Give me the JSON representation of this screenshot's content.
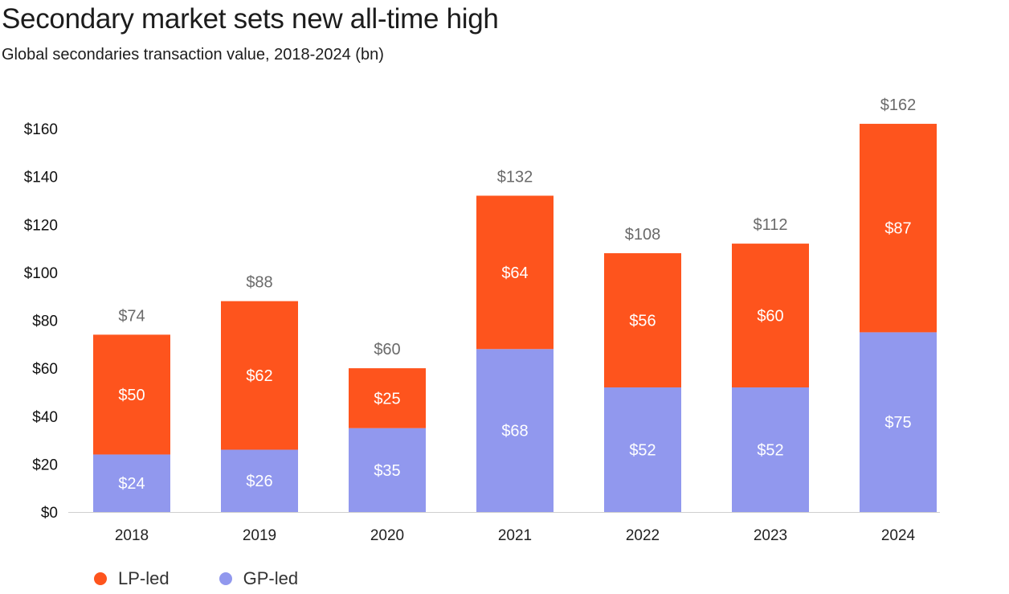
{
  "title": "Secondary market sets new all-time high",
  "subtitle": "Global secondaries transaction value, 2018-2024 (bn)",
  "colors": {
    "lp": "#FE541D",
    "gp": "#9198EE",
    "axis": "#111111",
    "total_label": "#6a6a6a",
    "bar_label": "#ffffff"
  },
  "chart_data": {
    "type": "bar",
    "stacked": true,
    "categories": [
      "2018",
      "2019",
      "2020",
      "2021",
      "2022",
      "2023",
      "2024"
    ],
    "series": [
      {
        "name": "GP-led",
        "values": [
          24,
          26,
          35,
          68,
          52,
          52,
          75
        ],
        "labels": [
          "$24",
          "$26",
          "$35",
          "$68",
          "$52",
          "$52",
          "$75"
        ]
      },
      {
        "name": "LP-led",
        "values": [
          50,
          62,
          25,
          64,
          56,
          60,
          87
        ],
        "labels": [
          "$50",
          "$62",
          "$25",
          "$64",
          "$56",
          "$60",
          "$87"
        ]
      }
    ],
    "totals": [
      "$74",
      "$88",
      "$60",
      "$132",
      "$108",
      "$112",
      "$162"
    ],
    "y_ticks": [
      0,
      20,
      40,
      60,
      80,
      100,
      120,
      140,
      160
    ],
    "y_tick_labels": [
      "$0",
      "$20",
      "$40",
      "$60",
      "$80",
      "$100",
      "$120",
      "$140",
      "$160"
    ],
    "ylim": [
      0,
      160
    ],
    "grid": false,
    "legend_position": "bottom-left"
  },
  "legend": [
    {
      "key": "lp",
      "label": "LP-led"
    },
    {
      "key": "gp",
      "label": "GP-led"
    }
  ]
}
